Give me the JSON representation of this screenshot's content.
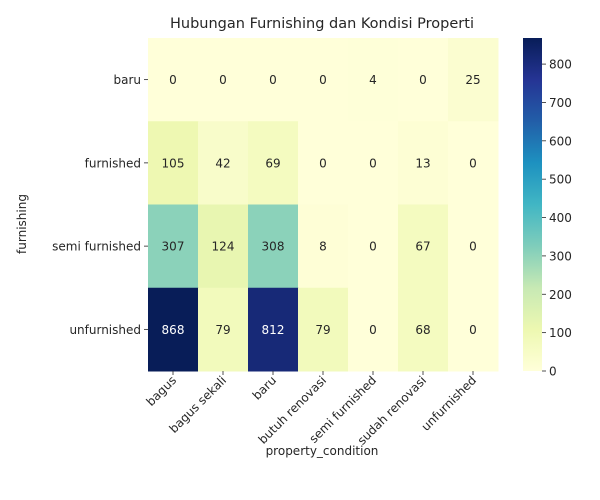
{
  "chart_data": {
    "type": "heatmap",
    "title": "Hubungan Furnishing dan Kondisi Properti",
    "xlabel": "property_condition",
    "ylabel": "furnishing",
    "x_categories": [
      "bagus",
      "bagus sekali",
      "baru",
      "butuh renovasi",
      "semi furnished",
      "sudah renovasi",
      "unfurnished"
    ],
    "y_categories": [
      "baru",
      "furnished",
      "semi furnished",
      "unfurnished"
    ],
    "values": [
      [
        0,
        0,
        0,
        0,
        4,
        0,
        25
      ],
      [
        105,
        42,
        69,
        0,
        0,
        13,
        0
      ],
      [
        307,
        124,
        308,
        8,
        0,
        67,
        0
      ],
      [
        868,
        79,
        812,
        79,
        0,
        68,
        0
      ]
    ],
    "colormap": "YlGnBu",
    "color_range": [
      0,
      868
    ],
    "colorbar_ticks": [
      0,
      100,
      200,
      300,
      400,
      500,
      600,
      700,
      800
    ]
  }
}
